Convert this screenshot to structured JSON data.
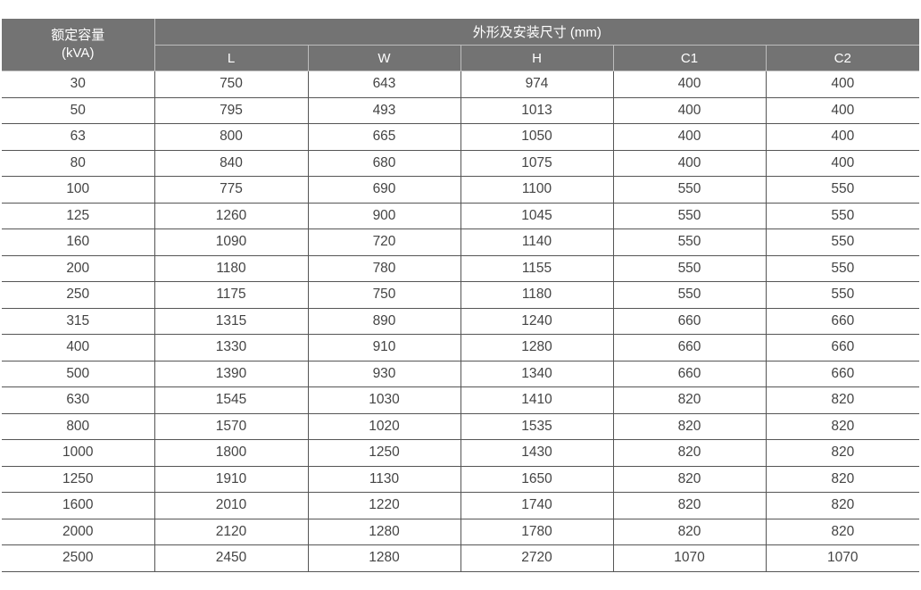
{
  "header": {
    "capacity_label": "额定容量",
    "capacity_unit": "(kVA)",
    "group_label": "外形及安装尺寸 (mm)",
    "columns": [
      "L",
      "W",
      "H",
      "C1",
      "C2"
    ]
  },
  "rows": [
    [
      "30",
      "750",
      "643",
      "974",
      "400",
      "400"
    ],
    [
      "50",
      "795",
      "493",
      "1013",
      "400",
      "400"
    ],
    [
      "63",
      "800",
      "665",
      "1050",
      "400",
      "400"
    ],
    [
      "80",
      "840",
      "680",
      "1075",
      "400",
      "400"
    ],
    [
      "100",
      "775",
      "690",
      "1100",
      "550",
      "550"
    ],
    [
      "125",
      "1260",
      "900",
      "1045",
      "550",
      "550"
    ],
    [
      "160",
      "1090",
      "720",
      "1140",
      "550",
      "550"
    ],
    [
      "200",
      "1180",
      "780",
      "1155",
      "550",
      "550"
    ],
    [
      "250",
      "1175",
      "750",
      "1180",
      "550",
      "550"
    ],
    [
      "315",
      "1315",
      "890",
      "1240",
      "660",
      "660"
    ],
    [
      "400",
      "1330",
      "910",
      "1280",
      "660",
      "660"
    ],
    [
      "500",
      "1390",
      "930",
      "1340",
      "660",
      "660"
    ],
    [
      "630",
      "1545",
      "1030",
      "1410",
      "820",
      "820"
    ],
    [
      "800",
      "1570",
      "1020",
      "1535",
      "820",
      "820"
    ],
    [
      "1000",
      "1800",
      "1250",
      "1430",
      "820",
      "820"
    ],
    [
      "1250",
      "1910",
      "1130",
      "1650",
      "820",
      "820"
    ],
    [
      "1600",
      "2010",
      "1220",
      "1740",
      "820",
      "820"
    ],
    [
      "2000",
      "2120",
      "1280",
      "1780",
      "820",
      "820"
    ],
    [
      "2500",
      "2450",
      "1280",
      "2720",
      "1070",
      "1070"
    ]
  ]
}
